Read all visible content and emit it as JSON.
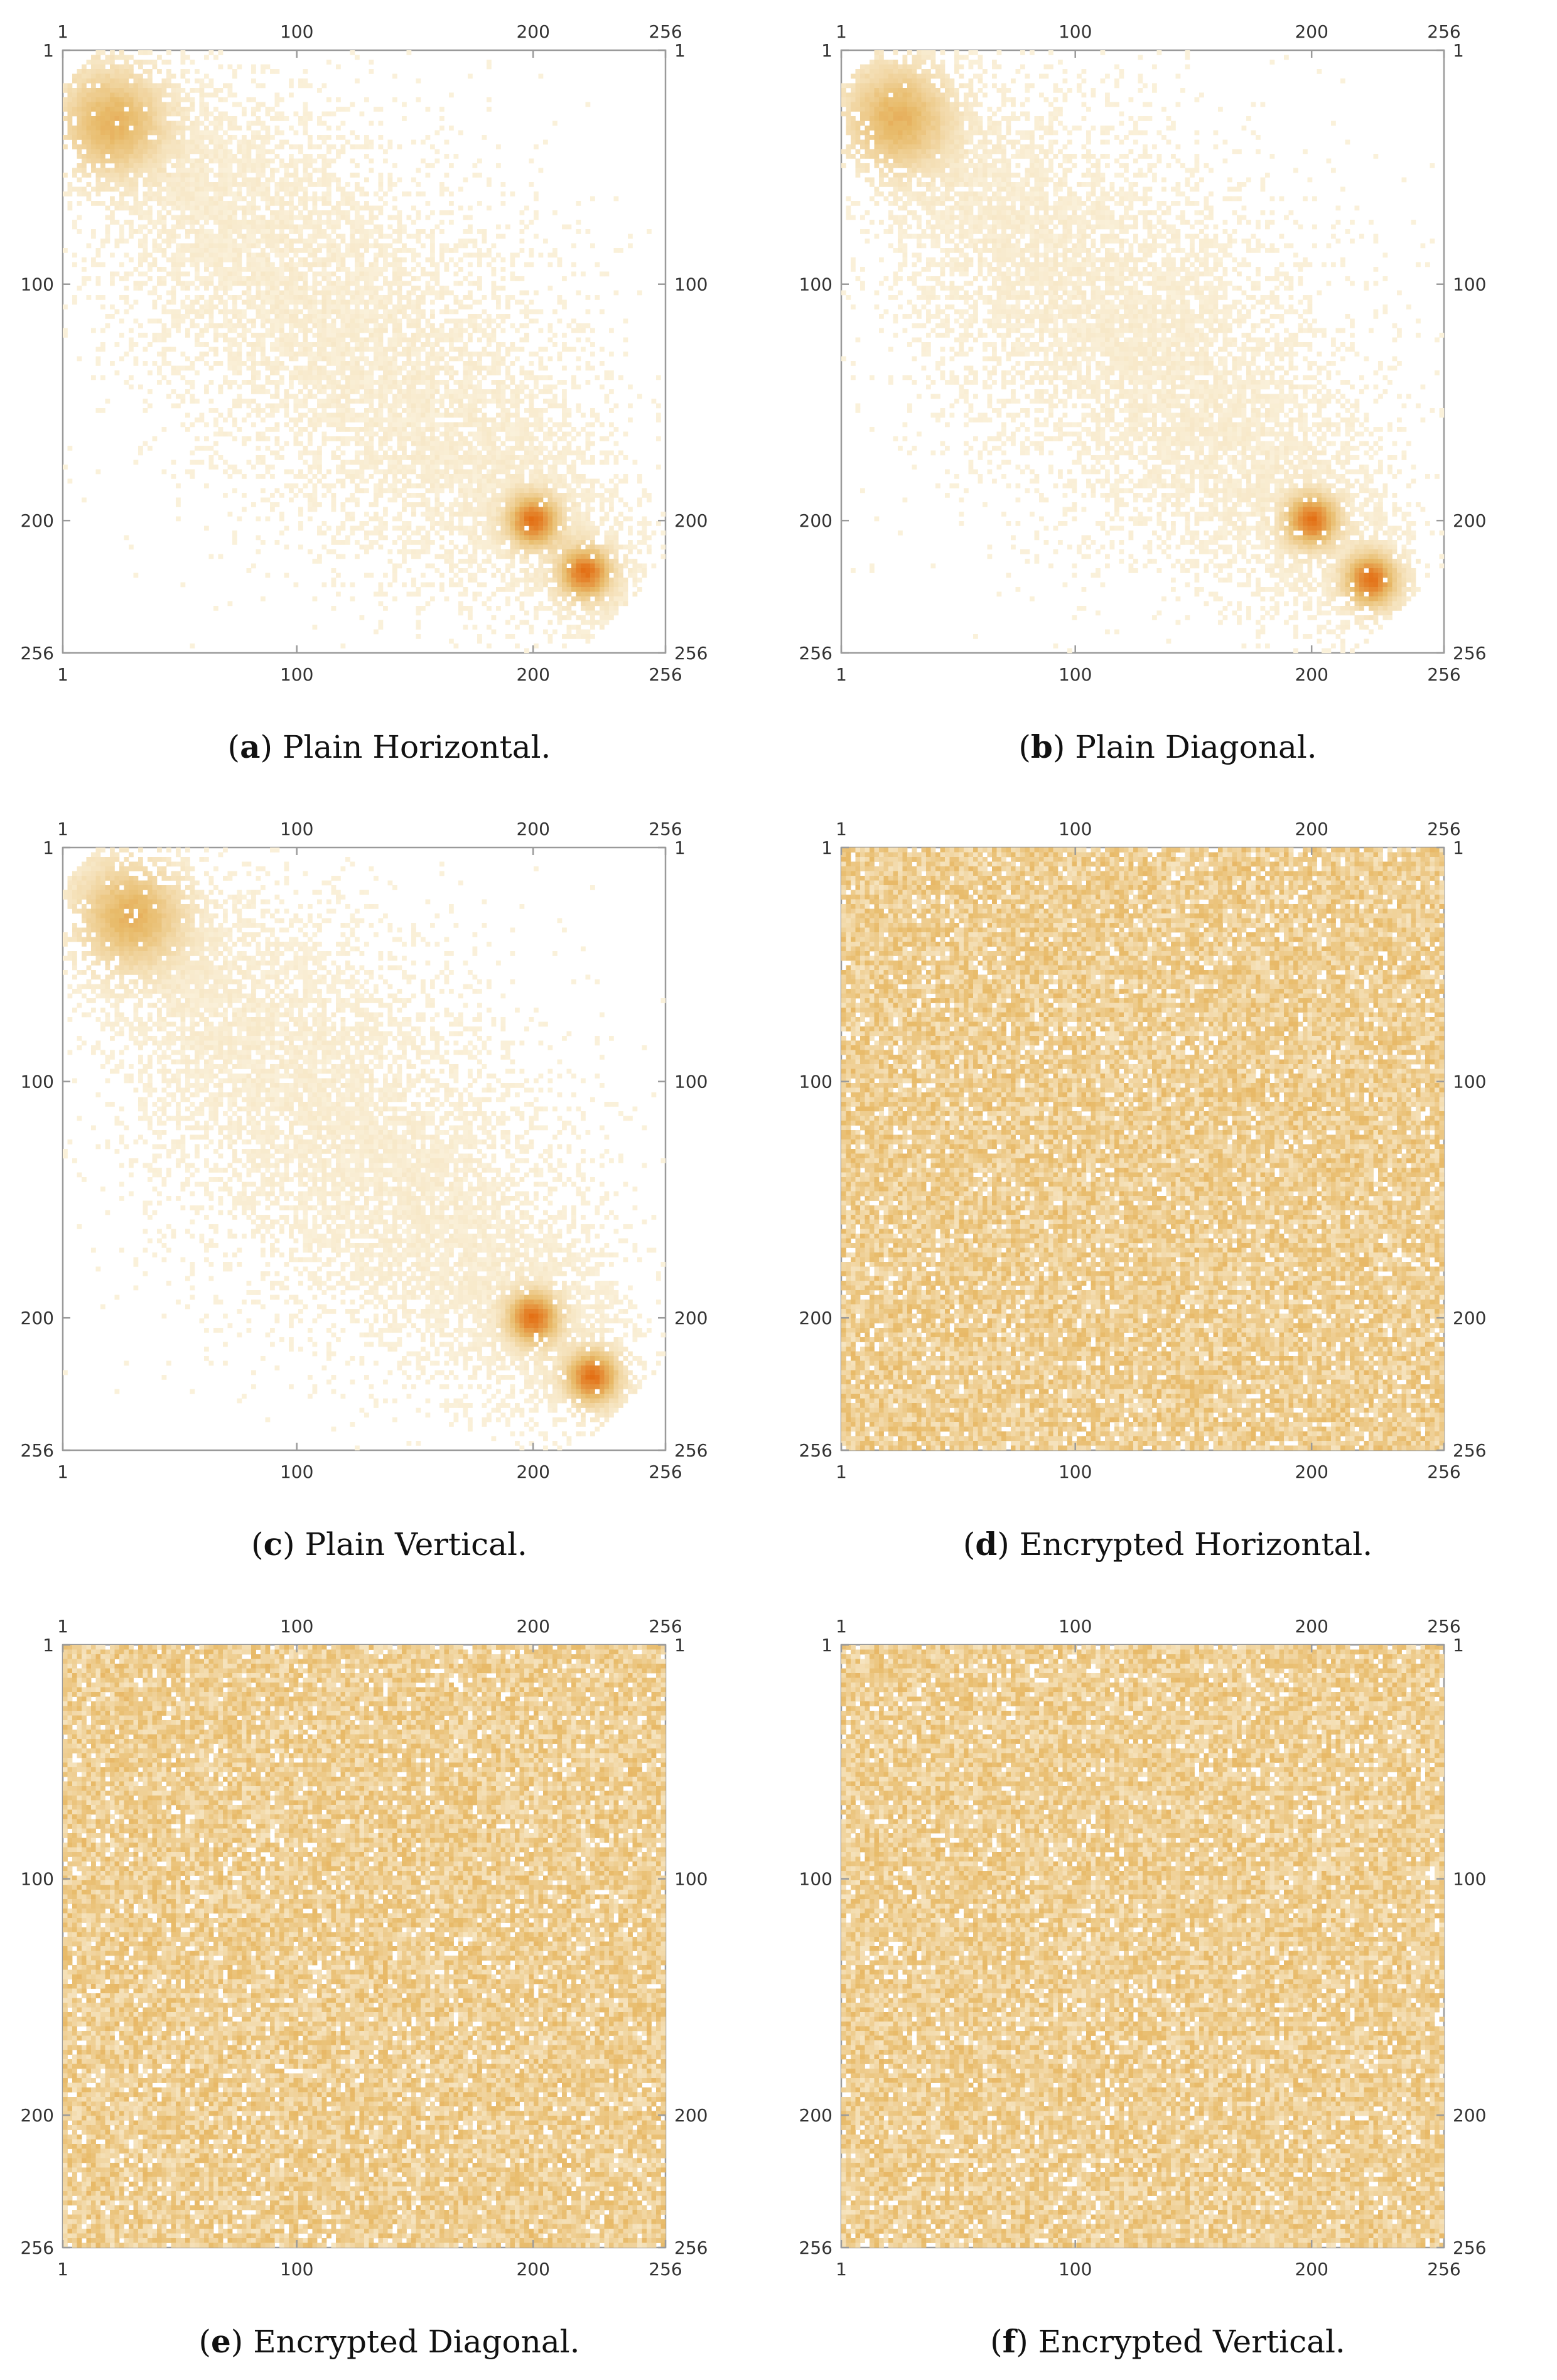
{
  "colors": {
    "low": "#fbf3df",
    "mid": "#e8bb6a",
    "high": "#e36d12",
    "frame": "#9a9a9a"
  },
  "chart_data": [
    {
      "type": "heatmap",
      "caption_letter": "a",
      "caption_text": "Plain Horizontal.",
      "x_ticks": [
        "1",
        "100",
        "200",
        "256"
      ],
      "y_ticks": [
        "1",
        "100",
        "200",
        "256"
      ],
      "xlim": [
        1,
        256
      ],
      "ylim": [
        1,
        256
      ],
      "distribution": "correlated",
      "dense_regions": [
        {
          "x": 22,
          "y": 32,
          "level": "medium"
        },
        {
          "x": 200,
          "y": 200,
          "level": "high"
        },
        {
          "x": 222,
          "y": 222,
          "level": "high"
        }
      ]
    },
    {
      "type": "heatmap",
      "caption_letter": "b",
      "caption_text": "Plain Diagonal.",
      "x_ticks": [
        "1",
        "100",
        "200",
        "256"
      ],
      "y_ticks": [
        "1",
        "100",
        "200",
        "256"
      ],
      "xlim": [
        1,
        256
      ],
      "ylim": [
        1,
        256
      ],
      "distribution": "correlated",
      "dense_regions": [
        {
          "x": 25,
          "y": 30,
          "level": "medium"
        },
        {
          "x": 200,
          "y": 200,
          "level": "high"
        },
        {
          "x": 225,
          "y": 225,
          "level": "high"
        }
      ]
    },
    {
      "type": "heatmap",
      "caption_letter": "c",
      "caption_text": "Plain Vertical.",
      "x_ticks": [
        "1",
        "100",
        "200",
        "256"
      ],
      "y_ticks": [
        "1",
        "100",
        "200",
        "256"
      ],
      "xlim": [
        1,
        256
      ],
      "ylim": [
        1,
        256
      ],
      "distribution": "correlated",
      "dense_regions": [
        {
          "x": 30,
          "y": 30,
          "level": "medium"
        },
        {
          "x": 200,
          "y": 200,
          "level": "high"
        },
        {
          "x": 225,
          "y": 225,
          "level": "high"
        }
      ]
    },
    {
      "type": "heatmap",
      "caption_letter": "d",
      "caption_text": "Encrypted Horizontal.",
      "x_ticks": [
        "1",
        "100",
        "200",
        "256"
      ],
      "y_ticks": [
        "1",
        "100",
        "200",
        "256"
      ],
      "xlim": [
        1,
        256
      ],
      "ylim": [
        1,
        256
      ],
      "distribution": "uniform"
    },
    {
      "type": "heatmap",
      "caption_letter": "e",
      "caption_text": "Encrypted Diagonal.",
      "x_ticks": [
        "1",
        "100",
        "200",
        "256"
      ],
      "y_ticks": [
        "1",
        "100",
        "200",
        "256"
      ],
      "xlim": [
        1,
        256
      ],
      "ylim": [
        1,
        256
      ],
      "distribution": "uniform"
    },
    {
      "type": "heatmap",
      "caption_letter": "f",
      "caption_text": "Encrypted Vertical.",
      "x_ticks": [
        "1",
        "100",
        "200",
        "256"
      ],
      "y_ticks": [
        "1",
        "100",
        "200",
        "256"
      ],
      "xlim": [
        1,
        256
      ],
      "ylim": [
        1,
        256
      ],
      "distribution": "uniform"
    }
  ]
}
